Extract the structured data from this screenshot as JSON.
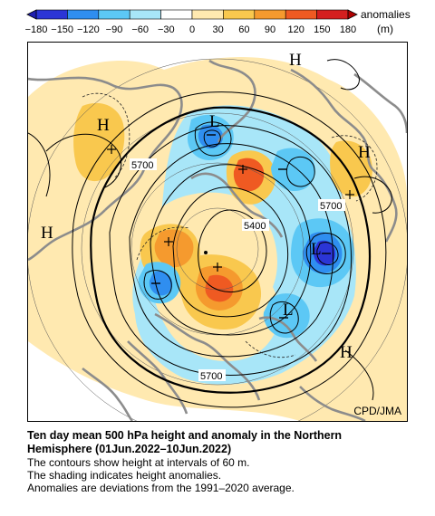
{
  "legend": {
    "ticks": [
      "-180",
      "-150",
      "-120",
      "-90",
      "-60",
      "-30",
      "0",
      "30",
      "60",
      "90",
      "120",
      "150",
      "180"
    ],
    "label_line1": "anomalies",
    "label_line2": "(m)",
    "colors": [
      "#2b35d6",
      "#2f8ef0",
      "#5cc8f5",
      "#a8e6f8",
      "#ffffff",
      "#ffe9b0",
      "#f9c84e",
      "#f59a2e",
      "#ef5a22",
      "#d41f1f"
    ]
  },
  "map": {
    "credit": "CPD/JMA",
    "markers": [
      {
        "text": "H"
      },
      {
        "text": "H"
      },
      {
        "text": "H"
      },
      {
        "text": "H"
      },
      {
        "text": "H"
      },
      {
        "text": "L"
      },
      {
        "text": "L"
      },
      {
        "text": "L"
      }
    ],
    "contour_labels": [
      "5700",
      "5400",
      "5700",
      "5700"
    ]
  },
  "caption": {
    "title_line1": "Ten day mean 500 hPa height and anomaly in the Northern",
    "title_line2": "Hemisphere (01Jun.2022–10Jun.2022)",
    "line1": "The contours show height at intervals of 60 m.",
    "line2": "The shading indicates height anomalies.",
    "line3": "Anomalies are deviations from the 1991–2020 average."
  }
}
